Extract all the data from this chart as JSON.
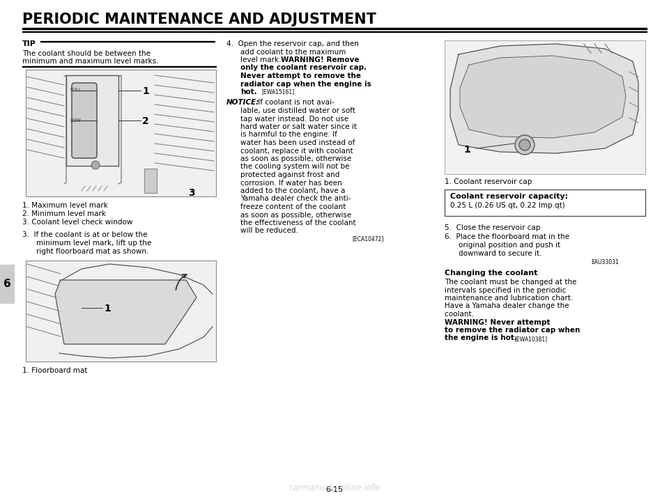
{
  "bg_color": "#ffffff",
  "title": "PERIODIC MAINTENANCE AND ADJUSTMENT",
  "page_number": "6-15",
  "section_number": "6",
  "tip_label": "TIP",
  "tip_text1": "The coolant should be between the",
  "tip_text2": "minimum and maximum level marks.",
  "caption1_1": "1. Maximum level mark",
  "caption1_2": "2. Minimum level mark",
  "caption1_3": "3. Coolant level check window",
  "step3_line1": "3.  If the coolant is at or below the",
  "step3_line2": "minimum level mark, lift up the",
  "step3_line3": "right floorboard mat as shown.",
  "caption2_1": "1. Floorboard mat",
  "step4_line1": "4.  Open the reservoir cap, and then",
  "step4_line2": "add coolant to the maximum",
  "step4_line3": "level mark.",
  "step4_warn1": "WARNING! Remove",
  "step4_warn2": "only the coolant reservoir cap.",
  "step4_warn3": "Never attempt to remove the",
  "step4_warn4": "radiator cap when the engine is",
  "step4_warn5": "hot.",
  "step4_ewa": "[EWA15161]",
  "notice_label": "NOTICE:",
  "notice_lines": [
    " If coolant is not avai-",
    "lable, use distilled water or soft",
    "tap water instead. Do not use",
    "hard water or salt water since it",
    "is harmful to the engine. If",
    "water has been used instead of",
    "coolant, replace it with coolant",
    "as soon as possible, otherwise",
    "the cooling system will not be",
    "protected against frost and",
    "corrosion. If water has been",
    "added to the coolant, have a",
    "Yamaha dealer check the anti-",
    "freeze content of the coolant",
    "as soon as possible, otherwise",
    "the effectiveness of the coolant",
    "will be reduced."
  ],
  "notice_eca": "[ECA10472]",
  "caption3_1": "1. Coolant reservoir cap",
  "capacity_title": "Coolant reservoir capacity:",
  "capacity_value": "0.25 L (0.26 US qt, 0.22 Imp.qt)",
  "step5_text": "5.  Close the reservoir cap",
  "step6_line1": "6.  Place the floorboard mat in the",
  "step6_line2": "original position and push it",
  "step6_line3": "downward to secure it.",
  "step6_ref": "EAU33031",
  "changing_title": "Changing the coolant",
  "changing_lines": [
    "The coolant must be changed at the",
    "intervals specified in the periodic",
    "maintenance and lubrication chart.",
    "Have a Yamaha dealer change the",
    "coolant."
  ],
  "chg_warn1": "WARNING! Never attempt",
  "chg_warn2": "to remove the radiator cap when",
  "chg_warn3": "the engine is hot.",
  "chg_ewa": "[EWA10381]",
  "watermark": "carmanualsonline.info"
}
